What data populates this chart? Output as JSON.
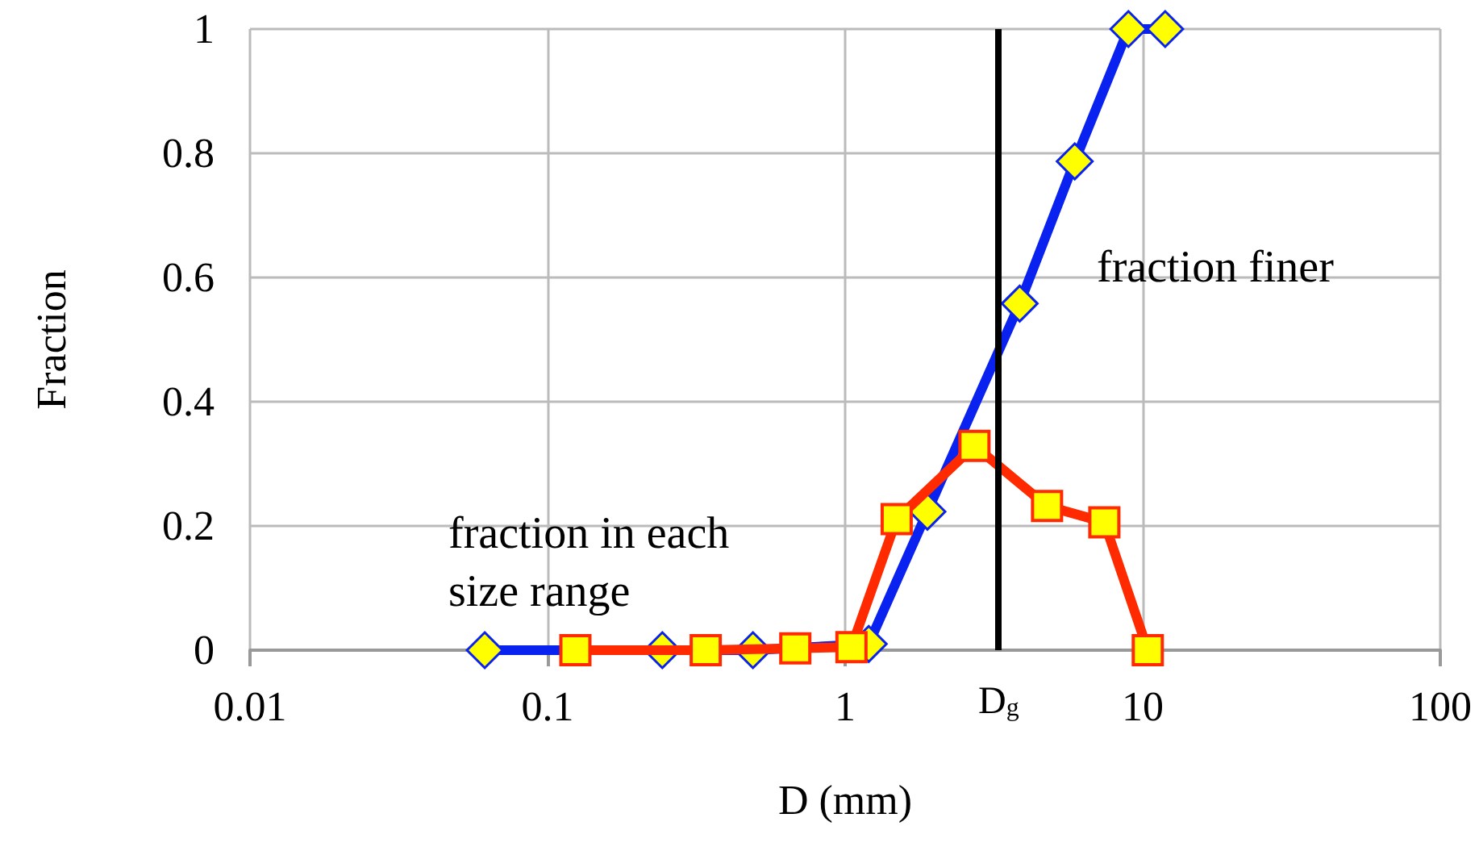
{
  "chart_data": {
    "type": "line",
    "xlabel": "D (mm)",
    "ylabel": "Fraction",
    "log": "x",
    "xlim": [
      0.01,
      100
    ],
    "xticks": [
      0.01,
      0.1,
      1,
      10,
      100
    ],
    "ylim": [
      0,
      1
    ],
    "yticks": [
      0,
      0.2,
      0.4,
      0.6,
      0.8,
      1
    ],
    "grid": true,
    "legend": false,
    "line_style": "solid",
    "series": [
      {
        "name": "fraction finer",
        "color": "#0a22f0",
        "marker": "diamond",
        "x": [
          0.0615,
          0.243,
          0.49,
          1.2,
          1.89,
          3.86,
          5.91,
          8.95,
          11.9
        ],
        "values": [
          0,
          0,
          0,
          0.01,
          0.223,
          0.558,
          0.787,
          1,
          1
        ]
      },
      {
        "name": "fraction in each size range",
        "color": "#ff2a00",
        "marker": "square",
        "x": [
          0.124,
          0.34,
          0.68,
          1.05,
          1.49,
          2.72,
          4.77,
          7.43,
          10.4
        ],
        "values": [
          0,
          0,
          0.003,
          0.005,
          0.211,
          0.329,
          0.232,
          0.206,
          0
        ]
      }
    ],
    "ref_lines": [
      {
        "axis": "x",
        "value": 3.28,
        "label": "D$_{g}$",
        "color": "#000000"
      }
    ]
  }
}
